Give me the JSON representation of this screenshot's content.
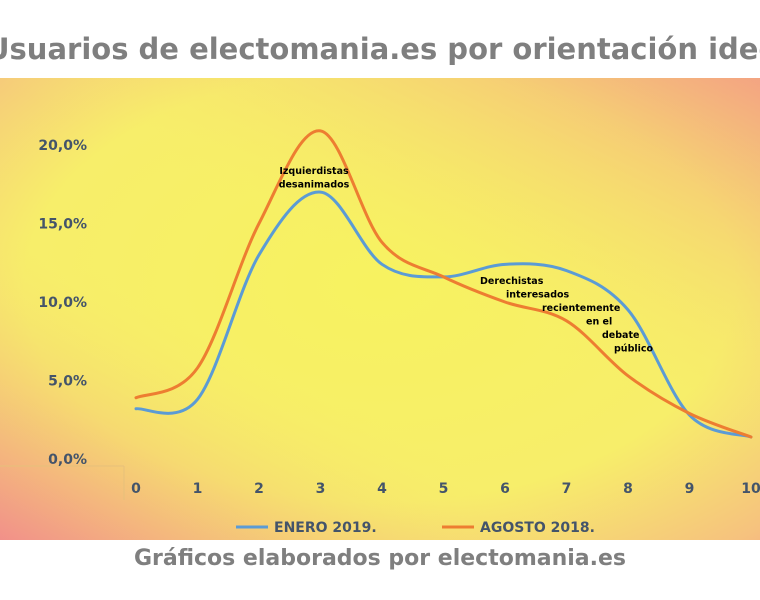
{
  "chart_data": {
    "type": "line",
    "title": "Usuarios de electomania.es por orientación ideológica",
    "x": [
      0,
      1,
      2,
      3,
      4,
      5,
      6,
      7,
      8,
      9,
      10
    ],
    "xticklabels": [
      "0",
      "1",
      "2",
      "3",
      "4",
      "5",
      "6",
      "7",
      "8",
      "9",
      "10"
    ],
    "yticklabels": [
      "0,0%",
      "5,0%",
      "10,0%",
      "15,0%",
      "20,0%"
    ],
    "ylim": [
      0,
      20
    ],
    "y_unit": "%",
    "grid": false,
    "legend_position": "bottom",
    "series": [
      {
        "name": "ENERO 2019.",
        "color": "#5b9bd5",
        "values": [
          3.2,
          3.8,
          13.0,
          17.0,
          12.4,
          11.6,
          12.4,
          12.0,
          9.5,
          2.8,
          1.4
        ]
      },
      {
        "name": "AGOSTO 2018.",
        "color": "#ed7d31",
        "values": [
          3.9,
          5.8,
          15.0,
          20.9,
          13.8,
          11.6,
          10.0,
          8.8,
          5.3,
          2.9,
          1.4
        ]
      }
    ],
    "annotations": [
      {
        "lines": [
          "Izquierdistas",
          "desanimados"
        ],
        "x": 3,
        "y": 17.5
      },
      {
        "lines": [
          "Derechistas",
          "interesados",
          "recientemente",
          "en el",
          "debate",
          "público"
        ],
        "x": 6.5,
        "y": 11.5
      }
    ]
  },
  "footer": "Gráficos elaborados por electomania.es"
}
